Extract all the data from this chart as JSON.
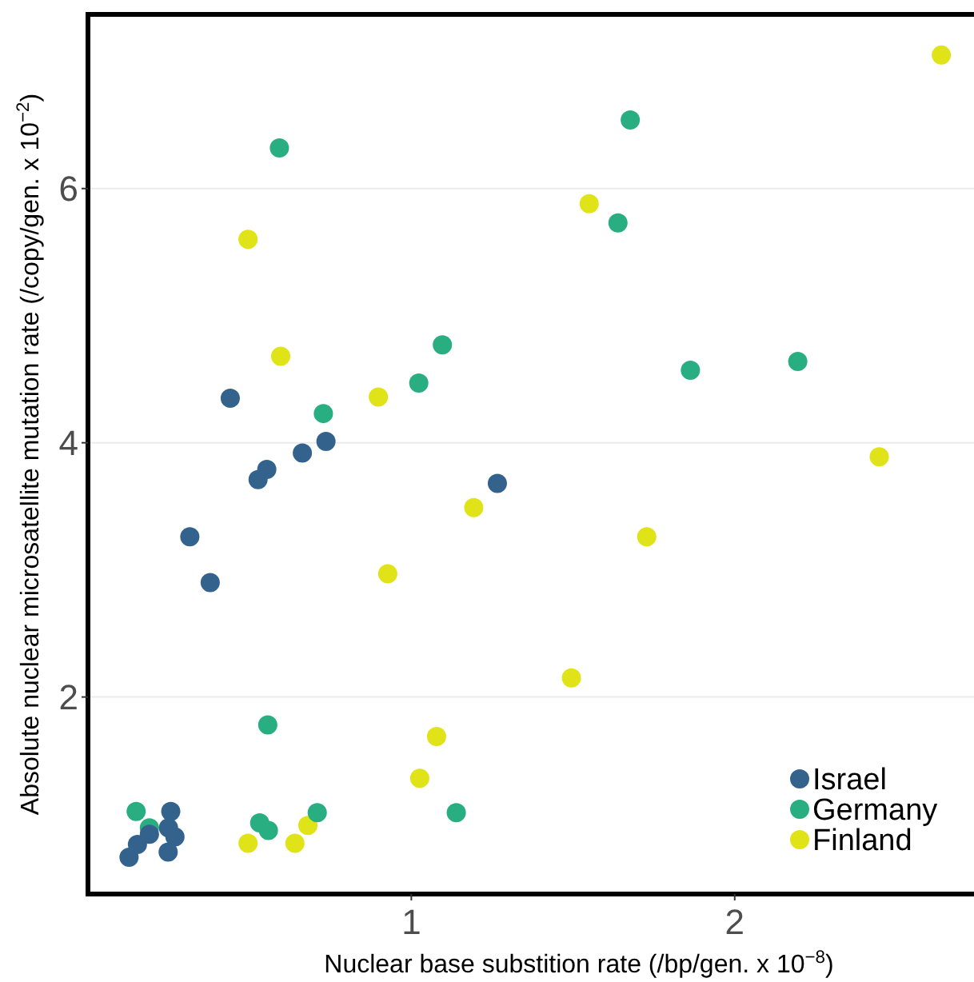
{
  "chart_data": {
    "type": "scatter",
    "xlabel": "Nuclear base substition rate (/bp/gen. x 10$^{−8}$)",
    "ylabel": "Absolute nuclear microsatellite mutation rate (/copy/gen. x 10$^{−2}$)",
    "xlim": [
      0,
      2.74
    ],
    "ylim": [
      0.45,
      7.37
    ],
    "xticks": [
      1,
      2
    ],
    "yticks": [
      2,
      4,
      6
    ],
    "grid": "y",
    "legend": "bottom right",
    "marker": "circle",
    "series": [
      {
        "name": "Israel",
        "color": "#33638d",
        "x": [
          0.44,
          0.315,
          0.378,
          0.526,
          0.553,
          0.663,
          0.736,
          1.266,
          0.127,
          0.153,
          0.19,
          0.256,
          0.249,
          0.269,
          0.248
        ],
        "values": [
          4.35,
          3.26,
          2.9,
          3.71,
          3.79,
          3.92,
          4.01,
          3.68,
          0.74,
          0.84,
          0.92,
          1.1,
          0.97,
          0.9,
          0.78
        ]
      },
      {
        "name": "Germany",
        "color": "#28ae80",
        "x": [
          0.149,
          0.19,
          0.531,
          0.558,
          0.709,
          1.139,
          0.592,
          0.728,
          1.023,
          1.096,
          0.556,
          1.677,
          1.639,
          1.863,
          2.195
        ],
        "values": [
          1.1,
          0.97,
          1.01,
          0.95,
          1.09,
          1.09,
          6.32,
          4.23,
          4.47,
          4.77,
          1.78,
          6.54,
          5.73,
          4.57,
          4.64
        ]
      },
      {
        "name": "Finland",
        "color": "#dfe318",
        "x": [
          0.495,
          0.64,
          0.68,
          1.026,
          1.078,
          0.495,
          0.596,
          0.898,
          0.927,
          1.193,
          2.639,
          1.55,
          1.728,
          2.447,
          1.495
        ],
        "values": [
          0.85,
          0.85,
          0.99,
          1.36,
          1.69,
          5.6,
          4.68,
          4.36,
          2.97,
          3.49,
          7.05,
          5.88,
          3.26,
          3.89,
          2.15
        ]
      }
    ]
  }
}
